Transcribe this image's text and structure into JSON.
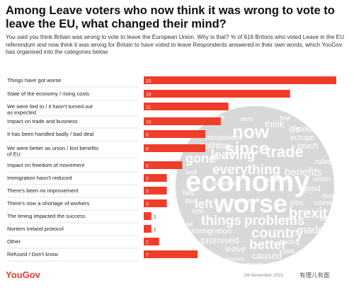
{
  "title": "Among Leave voters who now think it was wrong to vote to leave the EU, what changed their mind?",
  "subtitle": "You said you think Britain was wrong to vote to leave the European Union. Why is that? % of 616 Britons who voted Leave in the EU referendum and now think it was wrong for Britain to have voted to leave Respondents answered in their own words, which YouGov has organised into the categories below",
  "brand": "YouGov",
  "date": "24 November 2022",
  "watermark": "有理儿有面",
  "colors": {
    "bar": "#ef3d2a",
    "cloud": "#d8d8d8",
    "cloud_text": "#ffffff"
  },
  "chart_data": {
    "type": "bar",
    "orientation": "horizontal",
    "categories": [
      "Things have got worse",
      "State of the economy / rising costs",
      "We were lied to / it hasn't turned out as expected",
      "Impact on trade and business",
      "It has been handled badly / bad deal",
      "We were better as union / lost benefits of EU",
      "Impact on freedom of movement",
      "Immigration hasn't reduced",
      "There's been no improvement",
      "There's now a shortage of workers",
      "The timing impacted the success",
      "Nortern Ireland protocol",
      "Other",
      "Refused / Don't know"
    ],
    "values": [
      25,
      19,
      11,
      10,
      8,
      8,
      5,
      3,
      3,
      3,
      1,
      1,
      2,
      7
    ],
    "xlim": [
      0,
      25
    ],
    "legend": "none"
  },
  "word_cloud": {
    "words": [
      "economy",
      "worse",
      "now",
      "since",
      "trade",
      "leaving",
      "gone",
      "everything",
      "things",
      "problems",
      "country",
      "better",
      "brexit",
      "left",
      "benefits",
      "think",
      "europe",
      "workers",
      "lies",
      "good",
      "made",
      "promised",
      "leave",
      "caused",
      "immigration",
      "nothing",
      "much",
      "lost",
      "movement",
      "lied",
      "it's",
      "rules",
      "trading",
      "money",
      "jobs",
      "deal",
      "people",
      "countries",
      "union",
      "costs",
      "bad",
      "prices",
      "free",
      "euro",
      "price",
      "travel",
      "food",
      "business",
      "expected",
      "worked"
    ]
  }
}
